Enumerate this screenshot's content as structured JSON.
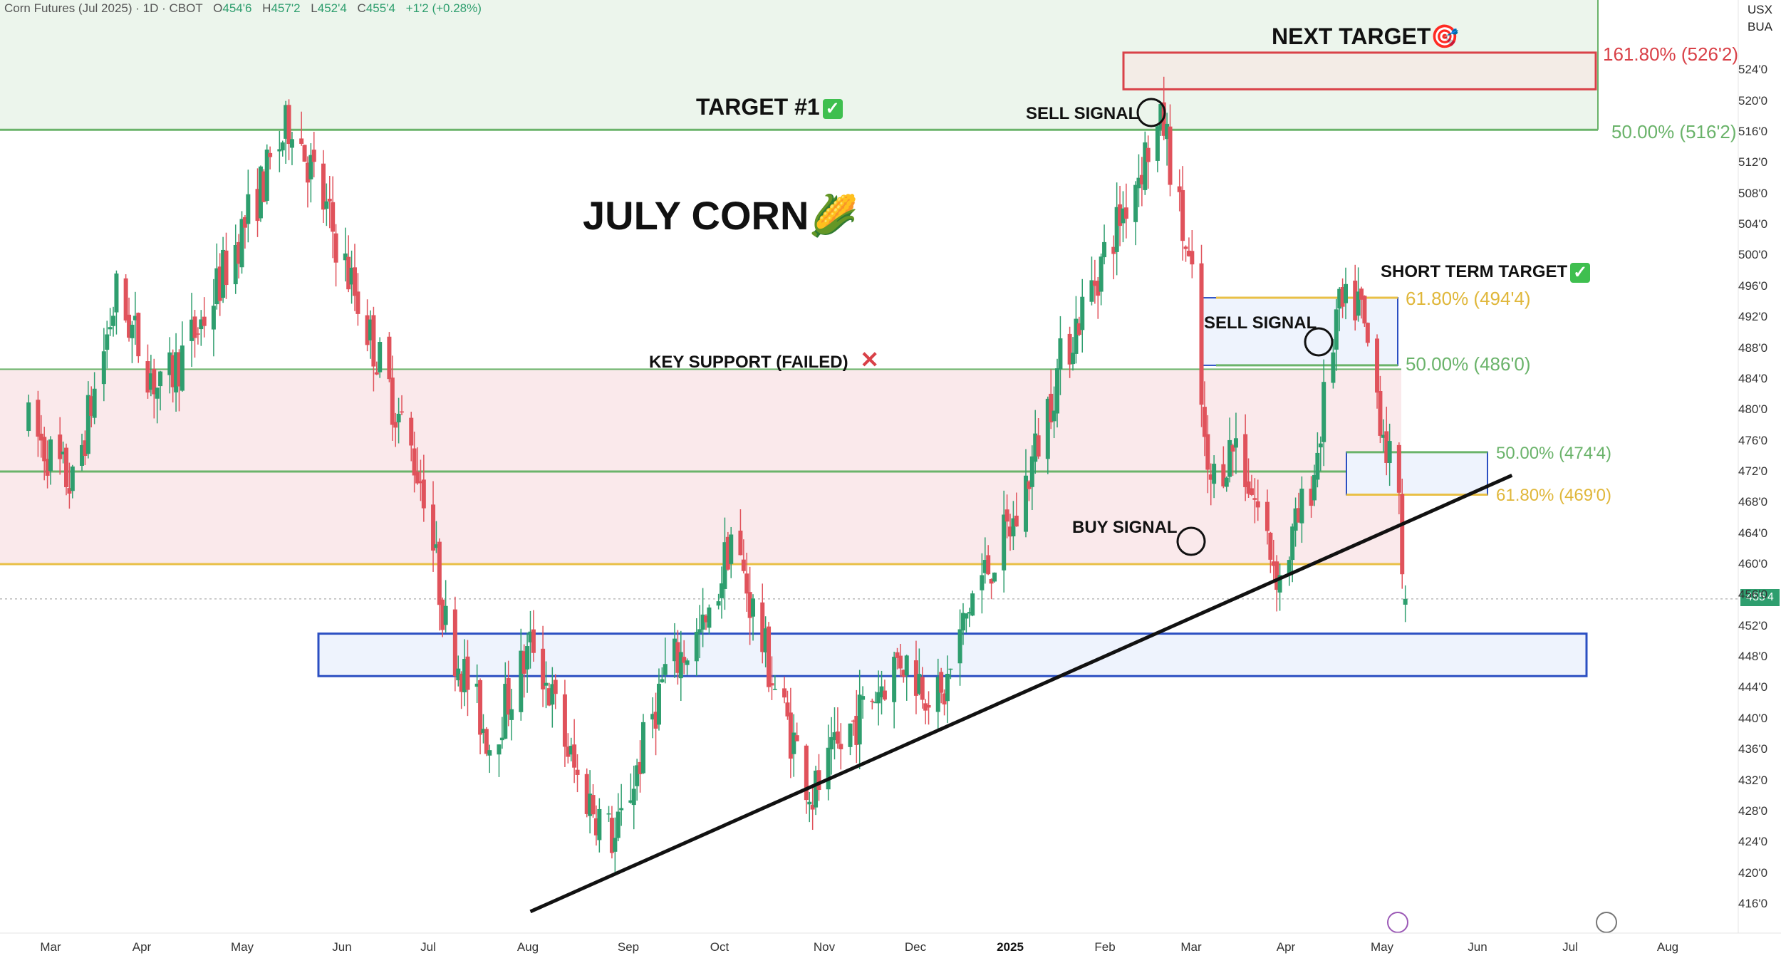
{
  "header": {
    "instrument": "Corn Futures (Jul 2025) · 1D · CBOT",
    "open_label": "O",
    "open": "454'6",
    "high_label": "H",
    "high": "457'2",
    "low_label": "L",
    "low": "452'4",
    "close_label": "C",
    "close": "455'4",
    "change": "+1'2 (+0.28%)",
    "currency": "USX",
    "unit": "BUA"
  },
  "colors": {
    "up": "#2e9e6e",
    "down": "#e0525b",
    "support_zone": "#f9e3e6",
    "target_zone": "#e6f2e6",
    "green_line": "#6ab36a",
    "yellow_line": "#e9c046",
    "blue_box": "#2b4fc2",
    "red_box": "#d94148"
  },
  "annotations": {
    "title": "JULY CORN🌽",
    "next_target": "NEXT TARGET🎯",
    "target1": "TARGET #1",
    "sell_signal_1": "SELL SIGNAL",
    "sell_signal_2": "SELL SIGNAL",
    "buy_signal": "BUY SIGNAL",
    "key_support": "KEY SUPPORT (FAILED)",
    "failed_mark": "✕",
    "short_term_target": "SHORT TERM TARGET",
    "check_mark": "✓"
  },
  "fib_labels": {
    "f161": "161.80% (526'2)",
    "f50_top": "50.00% (516'2)",
    "f618_a": "61.80% (494'4)",
    "f50_a": "50.00% (486'0)",
    "f50_b": "50.00% (474'4)",
    "f618_b": "61.80% (469'0)"
  },
  "last_price_badge": "455'4",
  "chart_data": {
    "type": "candlestick",
    "title": "JULY CORN",
    "y_unit": "cents/bu (quarter-cent ticks)",
    "y_ticks": [
      "416'0",
      "420'0",
      "424'0",
      "428'0",
      "432'0",
      "436'0",
      "440'0",
      "444'0",
      "448'0",
      "452'0",
      "456'0",
      "460'0",
      "464'0",
      "468'0",
      "472'0",
      "476'0",
      "480'0",
      "484'0",
      "488'0",
      "492'0",
      "496'0",
      "500'0",
      "504'0",
      "508'0",
      "512'0",
      "516'0",
      "520'0",
      "524'0"
    ],
    "x_ticks": [
      "Mar",
      "Apr",
      "May",
      "Jun",
      "Jul",
      "Aug",
      "Sep",
      "Oct",
      "Nov",
      "Dec",
      "2025",
      "Feb",
      "Mar",
      "Apr",
      "May",
      "Jun",
      "Jul",
      "Aug"
    ],
    "y_range": [
      414,
      528
    ],
    "levels": [
      {
        "name": "161.80%",
        "value": 526.25
      },
      {
        "name": "50.00% top",
        "value": 516.25
      },
      {
        "name": "61.80% short-term",
        "value": 494.5
      },
      {
        "name": "50.00% short-term",
        "value": 486.0
      },
      {
        "name": "50.00% lower",
        "value": 474.5
      },
      {
        "name": "61.80% lower",
        "value": 469.0
      },
      {
        "name": "key support top",
        "value": 485.25
      },
      {
        "name": "key support mid",
        "value": 472.0
      },
      {
        "name": "key support bottom",
        "value": 460.0
      }
    ],
    "swing_path": [
      [
        "2024-02-23",
        478
      ],
      [
        "2024-03-08",
        470
      ],
      [
        "2024-03-22",
        495
      ],
      [
        "2024-04-05",
        482
      ],
      [
        "2024-04-19",
        492
      ],
      [
        "2024-05-03",
        505
      ],
      [
        "2024-05-17",
        518
      ],
      [
        "2024-05-31",
        502
      ],
      [
        "2024-06-14",
        486
      ],
      [
        "2024-06-28",
        470
      ],
      [
        "2024-07-05",
        452
      ],
      [
        "2024-07-19",
        437
      ],
      [
        "2024-08-02",
        450
      ],
      [
        "2024-08-16",
        432
      ],
      [
        "2024-08-28",
        424
      ],
      [
        "2024-09-13",
        446
      ],
      [
        "2024-09-27",
        452
      ],
      [
        "2024-10-04",
        464
      ],
      [
        "2024-10-18",
        444
      ],
      [
        "2024-10-30",
        430
      ],
      [
        "2024-11-13",
        440
      ],
      [
        "2024-11-27",
        448
      ],
      [
        "2024-12-10",
        442
      ],
      [
        "2024-12-20",
        456
      ],
      [
        "2025-01-03",
        466
      ],
      [
        "2025-01-17",
        486
      ],
      [
        "2025-01-31",
        500
      ],
      [
        "2025-02-14",
        514
      ],
      [
        "2025-02-19",
        517
      ],
      [
        "2025-02-28",
        496
      ],
      [
        "2025-03-05",
        470
      ],
      [
        "2025-03-14",
        476
      ],
      [
        "2025-03-28",
        458
      ],
      [
        "2025-04-08",
        472
      ],
      [
        "2025-04-15",
        492
      ],
      [
        "2025-04-22",
        494
      ],
      [
        "2025-04-29",
        480
      ],
      [
        "2025-05-05",
        466
      ],
      [
        "2025-05-07",
        455.5
      ]
    ],
    "trendline": [
      [
        "2024-08-01",
        415
      ],
      [
        "2025-06-10",
        471.5
      ]
    ],
    "last_close": 455.5
  }
}
